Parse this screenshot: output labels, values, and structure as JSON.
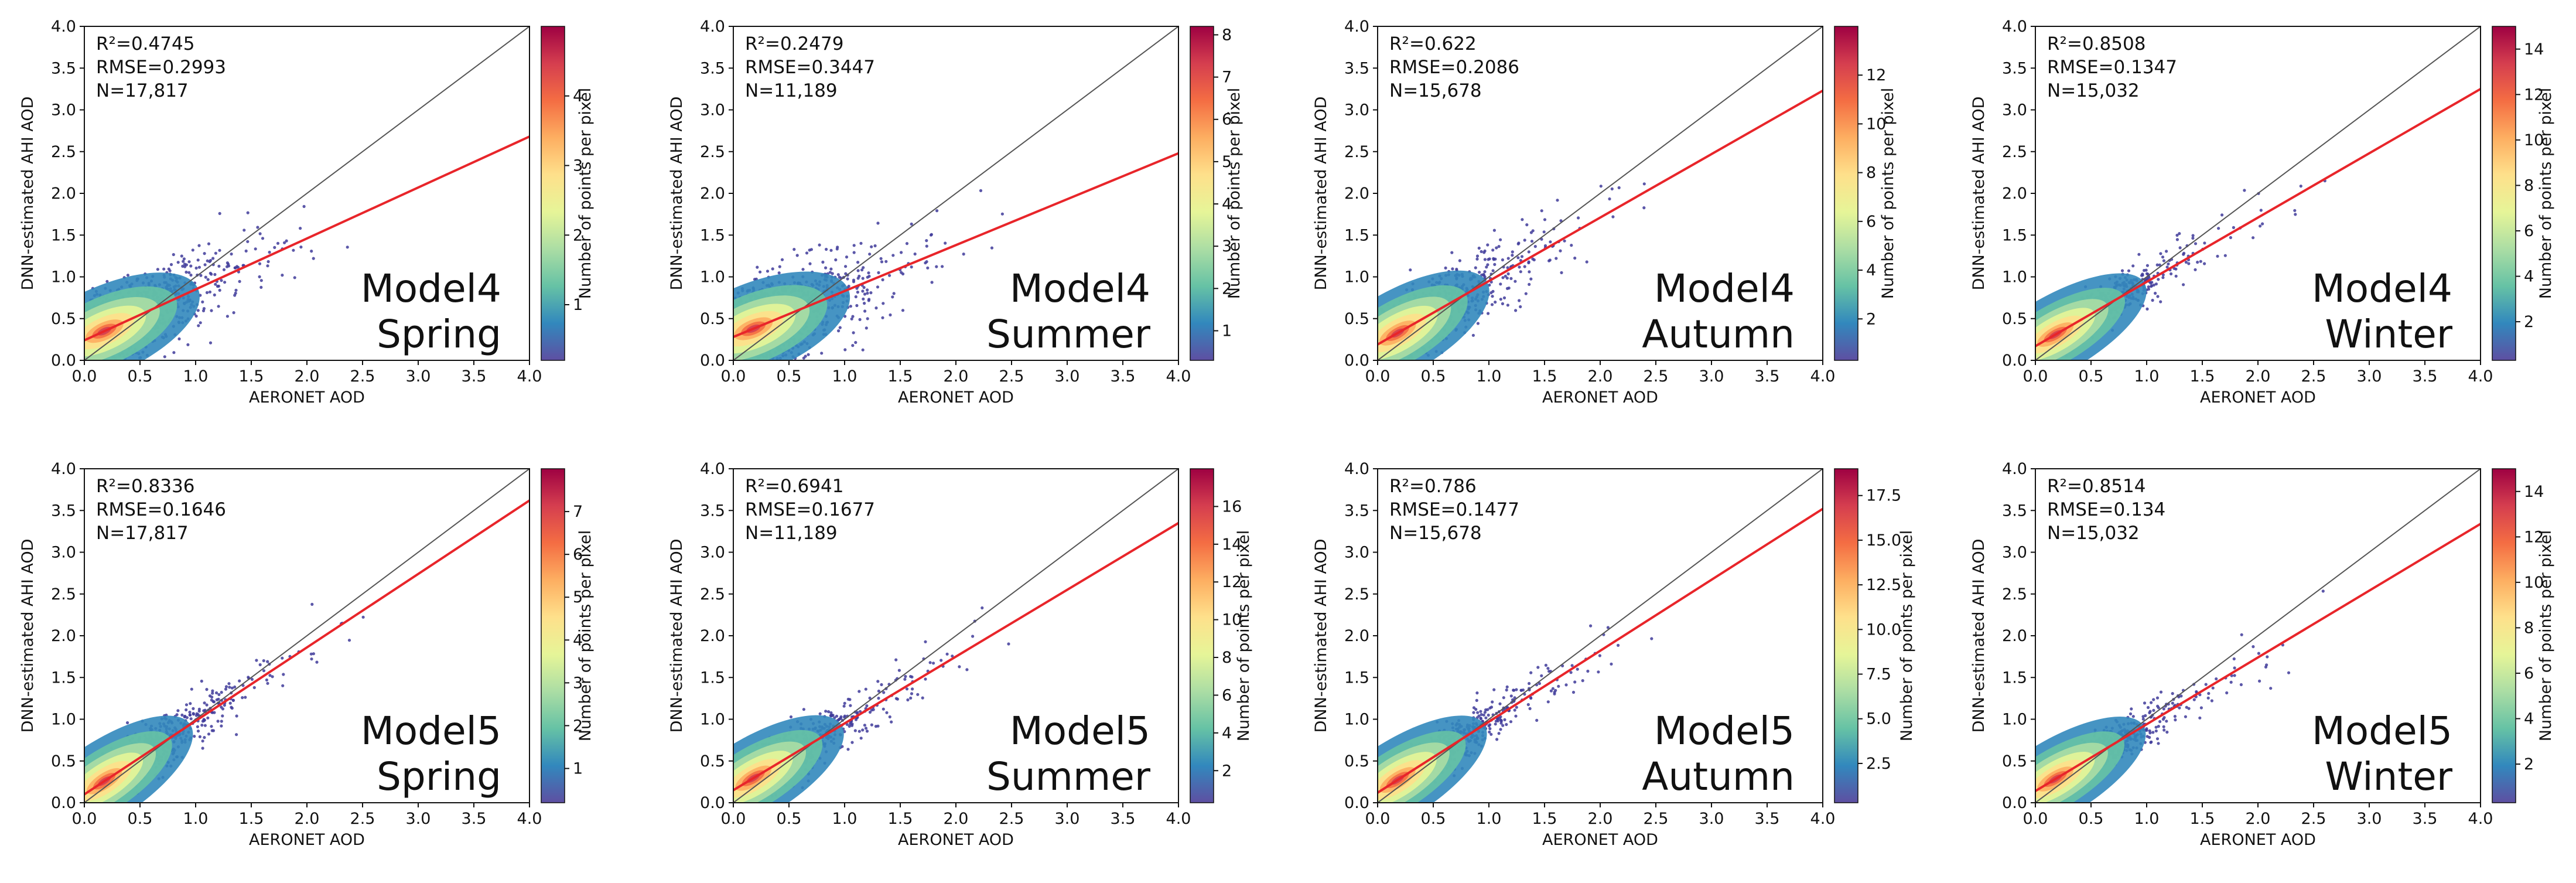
{
  "figure": {
    "colormap": [
      "#5e4fa2",
      "#3288bd",
      "#66c2a5",
      "#abdda4",
      "#e6f598",
      "#fee08b",
      "#fdae61",
      "#f46d43",
      "#d53e4f",
      "#9e0142"
    ],
    "scatter_color": "#3f3b9a",
    "fit_line_color": "#e8252a",
    "identity_line_color": "#555555"
  },
  "chart_data": [
    {
      "type": "scatter",
      "model": "Model4",
      "season": "Spring",
      "xlabel": "AERONET AOD",
      "ylabel": "DNN-estimated AHI AOD",
      "xlim": [
        0,
        4
      ],
      "ylim": [
        0,
        4
      ],
      "xticks": [
        "0.0",
        "0.5",
        "1.0",
        "1.5",
        "2.0",
        "2.5",
        "3.0",
        "3.5",
        "4.0"
      ],
      "yticks": [
        "0.0",
        "0.5",
        "1.0",
        "1.5",
        "2.0",
        "2.5",
        "3.0",
        "3.5",
        "4.0"
      ],
      "stats": {
        "r2": "R²=0.4745",
        "rmse": "RMSE=0.2993",
        "n": "N=17,817"
      },
      "fit": {
        "slope": 0.61,
        "intercept": 0.24
      },
      "colorbar": {
        "label": "Number of points per pixel",
        "min": 0.2,
        "max": 5,
        "ticks": [
          1,
          2,
          3,
          4
        ]
      },
      "spread": 0.33
    },
    {
      "type": "scatter",
      "model": "Model4",
      "season": "Summer",
      "xlabel": "AERONET AOD",
      "ylabel": "DNN-estimated AHI AOD",
      "xlim": [
        0,
        4
      ],
      "ylim": [
        0,
        4
      ],
      "xticks": [
        "0.0",
        "0.5",
        "1.0",
        "1.5",
        "2.0",
        "2.5",
        "3.0",
        "3.5",
        "4.0"
      ],
      "yticks": [
        "0.0",
        "0.5",
        "1.0",
        "1.5",
        "2.0",
        "2.5",
        "3.0",
        "3.5",
        "4.0"
      ],
      "stats": {
        "r2": "R²=0.2479",
        "rmse": "RMSE=0.3447",
        "n": "N=11,189"
      },
      "fit": {
        "slope": 0.55,
        "intercept": 0.28
      },
      "colorbar": {
        "label": "Number of points per pixel",
        "min": 0.3,
        "max": 8.2,
        "ticks": [
          1,
          2,
          3,
          4,
          5,
          6,
          7,
          8
        ]
      },
      "spread": 0.36
    },
    {
      "type": "scatter",
      "model": "Model4",
      "season": "Autumn",
      "xlabel": "AERONET AOD",
      "ylabel": "DNN-estimated AHI AOD",
      "xlim": [
        0,
        4
      ],
      "ylim": [
        0,
        4
      ],
      "xticks": [
        "0.0",
        "0.5",
        "1.0",
        "1.5",
        "2.0",
        "2.5",
        "3.0",
        "3.5",
        "4.0"
      ],
      "yticks": [
        "0.0",
        "0.5",
        "1.0",
        "1.5",
        "2.0",
        "2.5",
        "3.0",
        "3.5",
        "4.0"
      ],
      "stats": {
        "r2": "R²=0.622",
        "rmse": "RMSE=0.2086",
        "n": "N=15,678"
      },
      "fit": {
        "slope": 0.76,
        "intercept": 0.19
      },
      "colorbar": {
        "label": "Number of points per pixel",
        "min": 0.3,
        "max": 14,
        "ticks": [
          2,
          4,
          6,
          8,
          10,
          12
        ]
      },
      "spread": 0.26
    },
    {
      "type": "scatter",
      "model": "Model4",
      "season": "Winter",
      "xlabel": "AERONET AOD",
      "ylabel": "DNN-estimated AHI AOD",
      "xlim": [
        0,
        4
      ],
      "ylim": [
        0,
        4
      ],
      "xticks": [
        "0.0",
        "0.5",
        "1.0",
        "1.5",
        "2.0",
        "2.5",
        "3.0",
        "3.5",
        "4.0"
      ],
      "yticks": [
        "0.0",
        "0.5",
        "1.0",
        "1.5",
        "2.0",
        "2.5",
        "3.0",
        "3.5",
        "4.0"
      ],
      "stats": {
        "r2": "R²=0.8508",
        "rmse": "RMSE=0.1347",
        "n": "N=15,032"
      },
      "fit": {
        "slope": 0.77,
        "intercept": 0.17
      },
      "colorbar": {
        "label": "Number of points per pixel",
        "min": 0.3,
        "max": 15,
        "ticks": [
          2,
          4,
          6,
          8,
          10,
          12,
          14
        ]
      },
      "spread": 0.16
    },
    {
      "type": "scatter",
      "model": "Model5",
      "season": "Spring",
      "xlabel": "AERONET AOD",
      "ylabel": "DNN-estimated AHI AOD",
      "xlim": [
        0,
        4
      ],
      "ylim": [
        0,
        4
      ],
      "xticks": [
        "0.0",
        "0.5",
        "1.0",
        "1.5",
        "2.0",
        "2.5",
        "3.0",
        "3.5",
        "4.0"
      ],
      "yticks": [
        "0.0",
        "0.5",
        "1.0",
        "1.5",
        "2.0",
        "2.5",
        "3.0",
        "3.5",
        "4.0"
      ],
      "stats": {
        "r2": "R²=0.8336",
        "rmse": "RMSE=0.1646",
        "n": "N=17,817"
      },
      "fit": {
        "slope": 0.88,
        "intercept": 0.1
      },
      "colorbar": {
        "label": "Number of points per pixel",
        "min": 0.2,
        "max": 8,
        "ticks": [
          1,
          2,
          3,
          4,
          5,
          6,
          7
        ]
      },
      "spread": 0.19
    },
    {
      "type": "scatter",
      "model": "Model5",
      "season": "Summer",
      "xlabel": "AERONET AOD",
      "ylabel": "DNN-estimated AHI AOD",
      "xlim": [
        0,
        4
      ],
      "ylim": [
        0,
        4
      ],
      "xticks": [
        "0.0",
        "0.5",
        "1.0",
        "1.5",
        "2.0",
        "2.5",
        "3.0",
        "3.5",
        "4.0"
      ],
      "yticks": [
        "0.0",
        "0.5",
        "1.0",
        "1.5",
        "2.0",
        "2.5",
        "3.0",
        "3.5",
        "4.0"
      ],
      "stats": {
        "r2": "R²=0.6941",
        "rmse": "RMSE=0.1677",
        "n": "N=11,189"
      },
      "fit": {
        "slope": 0.8,
        "intercept": 0.15
      },
      "colorbar": {
        "label": "Number of points per pixel",
        "min": 0.3,
        "max": 18,
        "ticks": [
          2,
          4,
          6,
          8,
          10,
          12,
          14,
          16
        ]
      },
      "spread": 0.2
    },
    {
      "type": "scatter",
      "model": "Model5",
      "season": "Autumn",
      "xlabel": "AERONET AOD",
      "ylabel": "DNN-estimated AHI AOD",
      "xlim": [
        0,
        4
      ],
      "ylim": [
        0,
        4
      ],
      "xticks": [
        "0.0",
        "0.5",
        "1.0",
        "1.5",
        "2.0",
        "2.5",
        "3.0",
        "3.5",
        "4.0"
      ],
      "yticks": [
        "0.0",
        "0.5",
        "1.0",
        "1.5",
        "2.0",
        "2.5",
        "3.0",
        "3.5",
        "4.0"
      ],
      "stats": {
        "r2": "R²=0.786",
        "rmse": "RMSE=0.1477",
        "n": "N=15,678"
      },
      "fit": {
        "slope": 0.85,
        "intercept": 0.12
      },
      "colorbar": {
        "label": "Number of points per pixel",
        "min": 0.3,
        "max": 19,
        "ticks": [
          2.5,
          5.0,
          7.5,
          10.0,
          12.5,
          15.0,
          17.5
        ]
      },
      "spread": 0.18
    },
    {
      "type": "scatter",
      "model": "Model5",
      "season": "Winter",
      "xlabel": "AERONET AOD",
      "ylabel": "DNN-estimated AHI AOD",
      "xlim": [
        0,
        4
      ],
      "ylim": [
        0,
        4
      ],
      "xticks": [
        "0.0",
        "0.5",
        "1.0",
        "1.5",
        "2.0",
        "2.5",
        "3.0",
        "3.5",
        "4.0"
      ],
      "yticks": [
        "0.0",
        "0.5",
        "1.0",
        "1.5",
        "2.0",
        "2.5",
        "3.0",
        "3.5",
        "4.0"
      ],
      "stats": {
        "r2": "R²=0.8514",
        "rmse": "RMSE=0.134",
        "n": "N=15,032"
      },
      "fit": {
        "slope": 0.8,
        "intercept": 0.14
      },
      "colorbar": {
        "label": "Number of points per pixel",
        "min": 0.3,
        "max": 15,
        "ticks": [
          2,
          4,
          6,
          8,
          10,
          12,
          14
        ]
      },
      "spread": 0.16
    }
  ]
}
